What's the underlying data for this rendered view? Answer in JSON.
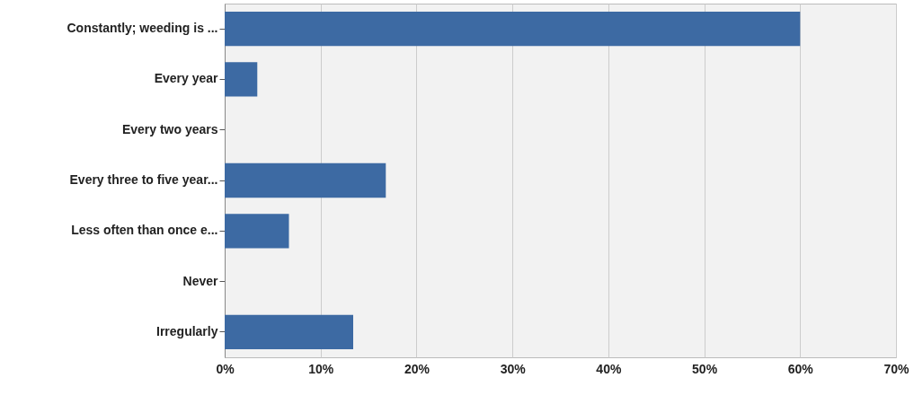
{
  "chart_data": {
    "type": "bar",
    "orientation": "horizontal",
    "categories": [
      "Constantly; weeding is ...",
      "Every year",
      "Every two years",
      "Every three to five year...",
      "Less often than once e...",
      "Never",
      "Irregularly"
    ],
    "values": [
      60,
      3.4,
      0,
      16.8,
      6.7,
      0,
      13.4
    ],
    "color": "#3d6aa3",
    "xlim": [
      0,
      70
    ],
    "xticks": [
      {
        "value": 0,
        "label": "0%"
      },
      {
        "value": 10,
        "label": "10%"
      },
      {
        "value": 20,
        "label": "20%"
      },
      {
        "value": 30,
        "label": "30%"
      },
      {
        "value": 40,
        "label": "40%"
      },
      {
        "value": 50,
        "label": "50%"
      },
      {
        "value": 60,
        "label": "60%"
      },
      {
        "value": 70,
        "label": "70%"
      }
    ],
    "grid": "x"
  }
}
